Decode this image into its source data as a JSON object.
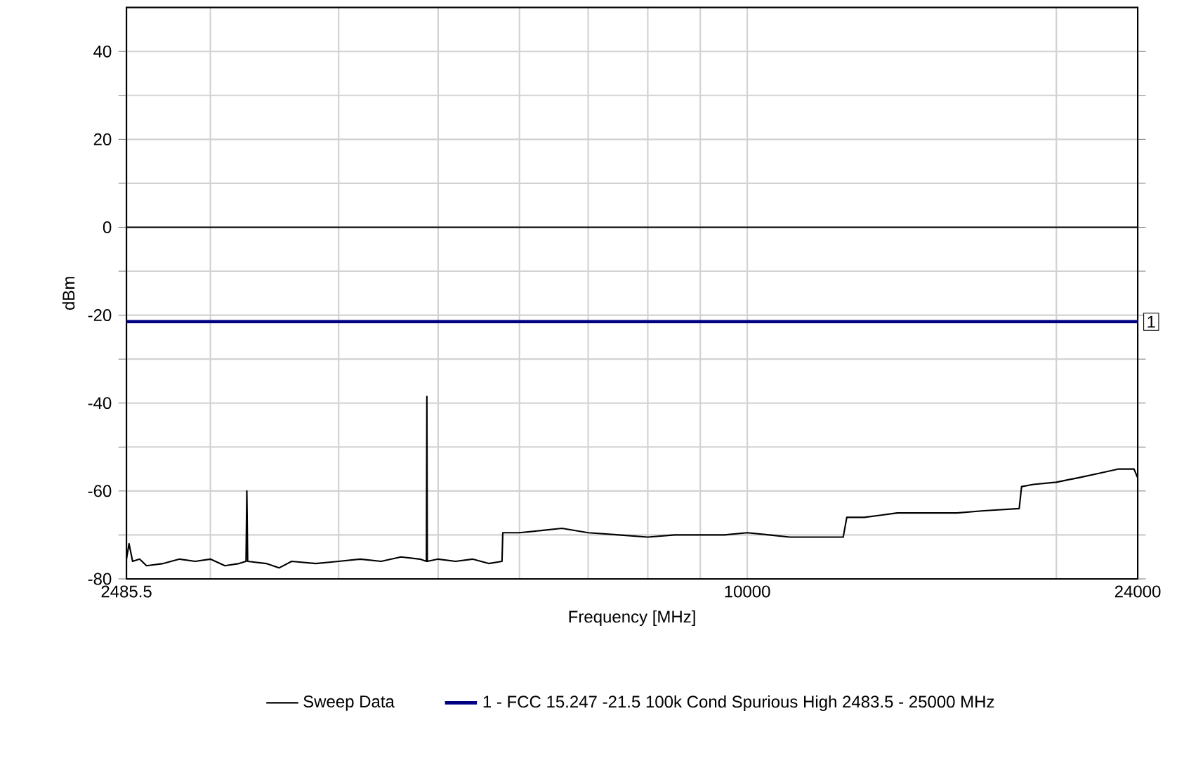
{
  "chart_data": {
    "type": "line",
    "xlabel": "Frequency [MHz]",
    "ylabel": "dBm",
    "log": "x",
    "grid": true,
    "legend": "bottom",
    "marker": "none",
    "line_style": "solid",
    "xlim": [
      2485.5,
      24000
    ],
    "ylim": [
      -80,
      50
    ],
    "xticks": [
      2485.5,
      {
        "value": 3000,
        "label": null
      },
      {
        "value": 4000,
        "label": null
      },
      {
        "value": 5000,
        "label": null
      },
      {
        "value": 6000,
        "label": null
      },
      {
        "value": 7000,
        "label": null
      },
      {
        "value": 8000,
        "label": null
      },
      {
        "value": 9000,
        "label": null
      },
      10000,
      {
        "value": 20000,
        "label": null
      },
      24000
    ],
    "yticks": [
      -80,
      {
        "value": -70,
        "label": null
      },
      -60,
      {
        "value": -50,
        "label": null
      },
      -40,
      {
        "value": -30,
        "label": null
      },
      -20,
      {
        "value": -10,
        "label": null
      },
      0,
      {
        "value": 10,
        "label": null
      },
      20,
      {
        "value": 30,
        "label": null
      },
      40
    ],
    "x": [
      2485.5,
      2500,
      2520,
      2560,
      2600,
      2700,
      2800,
      2900,
      3000,
      3100,
      3200,
      3250,
      3256,
      3262,
      3400,
      3500,
      3600,
      3800,
      4000,
      4200,
      4400,
      4600,
      4800,
      4870,
      4875,
      4880,
      5000,
      5200,
      5400,
      5600,
      5770,
      5780,
      6000,
      6300,
      6600,
      7000,
      7500,
      8000,
      8500,
      9000,
      9500,
      10000,
      10500,
      11000,
      11500,
      12400,
      12500,
      13000,
      13500,
      14000,
      15000,
      16000,
      17000,
      18400,
      18500,
      19000,
      20000,
      21000,
      22000,
      23000,
      23800,
      24000
    ],
    "series": [
      {
        "name": "Sweep Data",
        "color": "#000000",
        "values": [
          -75.5,
          -72,
          -76,
          -75.5,
          -77,
          -76.5,
          -75.5,
          -76,
          -75.5,
          -77,
          -76.5,
          -76,
          -60,
          -76,
          -76.5,
          -77.5,
          -76,
          -76.5,
          -76,
          -75.5,
          -76,
          -75,
          -75.5,
          -76,
          -38.5,
          -76,
          -75.5,
          -76,
          -75.5,
          -76.5,
          -76,
          -69.5,
          -69.5,
          -69,
          -68.5,
          -69.5,
          -70,
          -70.5,
          -70,
          -70,
          -70,
          -69.5,
          -70,
          -70.5,
          -70.5,
          -70.5,
          -66,
          -66,
          -65.5,
          -65,
          -65,
          -65,
          -64.5,
          -64,
          -59,
          -58.5,
          -58,
          -57,
          -56,
          -55,
          -55,
          -57
        ]
      },
      {
        "name": "1 - FCC 15.247 -21.5 100k Cond Spurious High 2483.5 - 25000 MHz",
        "color": "#000080",
        "x": [
          2485.5,
          24000
        ],
        "values": [
          -21.5,
          -21.5
        ]
      }
    ],
    "ref_lines": [
      {
        "axis": "y",
        "value": 0,
        "color": "#000000"
      }
    ],
    "annotations": [
      {
        "text": "1",
        "x": 24000,
        "y": -21.5
      }
    ]
  }
}
